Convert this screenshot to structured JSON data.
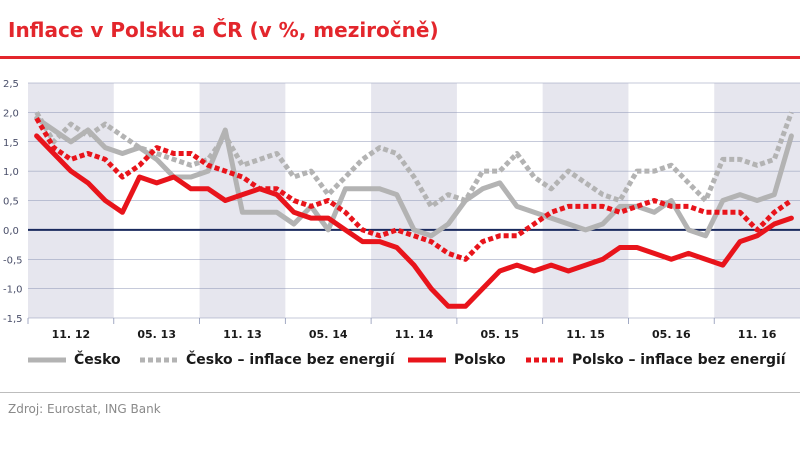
{
  "header": {
    "title": "Inflace v Polsku a ČR (v %, meziročně)"
  },
  "footer": {
    "source": "Zdroj: Eurostat, ING Bank"
  },
  "chart_data": {
    "type": "line",
    "title": "Inflace v Polsku a ČR (v %, meziročně)",
    "xlabel": "",
    "ylabel": "",
    "ylim": [
      -1.5,
      2.5
    ],
    "yticks": [
      "2,5",
      "2,0",
      "1,5",
      "1,0",
      "0,5",
      "0,0",
      "-0,5",
      "-1,0",
      "-1,5"
    ],
    "ytick_values": [
      2.5,
      2.0,
      1.5,
      1.0,
      0.5,
      0.0,
      -0.5,
      -1.0,
      -1.5
    ],
    "xtick_labels": [
      "11. 12",
      "05. 13",
      "11. 13",
      "05. 14",
      "11. 14",
      "05. 15",
      "11. 15",
      "05. 16",
      "11. 16"
    ],
    "grid": true,
    "legend_position": "bottom",
    "colors": {
      "cesko": "#b3b3b3",
      "polsko": "#e8141b",
      "shade": "#e6e6ee",
      "zero_line": "#1a2a5e"
    },
    "series": [
      {
        "name": "Česko",
        "style": "solid",
        "color": "#b3b3b3",
        "values": [
          1.9,
          1.7,
          1.5,
          1.7,
          1.4,
          1.3,
          1.4,
          1.2,
          0.9,
          0.9,
          1.0,
          1.7,
          0.3,
          0.3,
          0.3,
          0.1,
          0.4,
          0.0,
          0.7,
          0.7,
          0.7,
          0.6,
          0.0,
          -0.1,
          0.1,
          0.5,
          0.7,
          0.8,
          0.4,
          0.3,
          0.2,
          0.1,
          0.0,
          0.1,
          0.4,
          0.4,
          0.3,
          0.5,
          0.0,
          -0.1,
          0.5,
          0.6,
          0.5,
          0.6,
          1.6
        ]
      },
      {
        "name": "Česko – inflace bez energií",
        "style": "dotted",
        "color": "#b3b3b3",
        "values": [
          2.0,
          1.5,
          1.8,
          1.6,
          1.8,
          1.6,
          1.4,
          1.3,
          1.2,
          1.1,
          1.2,
          1.6,
          1.1,
          1.2,
          1.3,
          0.9,
          1.0,
          0.6,
          0.9,
          1.2,
          1.4,
          1.3,
          0.9,
          0.4,
          0.6,
          0.5,
          1.0,
          1.0,
          1.3,
          0.9,
          0.7,
          1.0,
          0.8,
          0.6,
          0.5,
          1.0,
          1.0,
          1.1,
          0.8,
          0.5,
          1.2,
          1.2,
          1.1,
          1.2,
          2.0
        ]
      },
      {
        "name": "Polsko",
        "style": "solid",
        "color": "#e8141b",
        "values": [
          1.6,
          1.3,
          1.0,
          0.8,
          0.5,
          0.3,
          0.9,
          0.8,
          0.9,
          0.7,
          0.7,
          0.5,
          0.6,
          0.7,
          0.6,
          0.3,
          0.2,
          0.2,
          0.0,
          -0.2,
          -0.2,
          -0.3,
          -0.6,
          -1.0,
          -1.3,
          -1.3,
          -1.0,
          -0.7,
          -0.6,
          -0.7,
          -0.6,
          -0.7,
          -0.6,
          -0.5,
          -0.3,
          -0.3,
          -0.4,
          -0.5,
          -0.4,
          -0.5,
          -0.6,
          -0.2,
          -0.1,
          0.1,
          0.2
        ]
      },
      {
        "name": "Polsko – inflace bez energií",
        "style": "dotted",
        "color": "#e8141b",
        "values": [
          1.9,
          1.4,
          1.2,
          1.3,
          1.2,
          0.9,
          1.1,
          1.4,
          1.3,
          1.3,
          1.1,
          1.0,
          0.9,
          0.7,
          0.7,
          0.5,
          0.4,
          0.5,
          0.3,
          0.0,
          -0.1,
          0.0,
          -0.1,
          -0.2,
          -0.4,
          -0.5,
          -0.2,
          -0.1,
          -0.1,
          0.1,
          0.3,
          0.4,
          0.4,
          0.4,
          0.3,
          0.4,
          0.5,
          0.4,
          0.4,
          0.3,
          0.3,
          0.3,
          0.0,
          0.3,
          0.5
        ]
      }
    ]
  }
}
